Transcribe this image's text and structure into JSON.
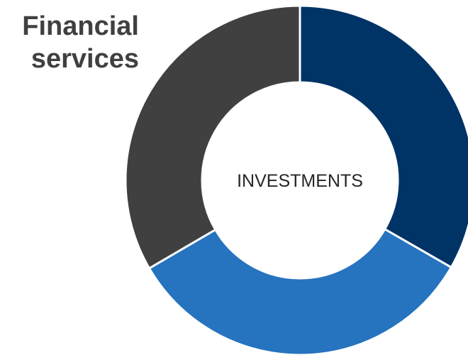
{
  "header": {
    "title_line1": "Financial",
    "title_line2": "services"
  },
  "chart_data": {
    "type": "pie",
    "variant": "donut",
    "center_label": "INVESTMENTS",
    "slices": [
      {
        "value": 33.3,
        "color": "#003366"
      },
      {
        "value": 33.3,
        "color": "#2673bf"
      },
      {
        "value": 33.4,
        "color": "#404040"
      }
    ],
    "start_angle_deg": 0,
    "direction": "clockwise",
    "separator_color": "#ffffff"
  }
}
